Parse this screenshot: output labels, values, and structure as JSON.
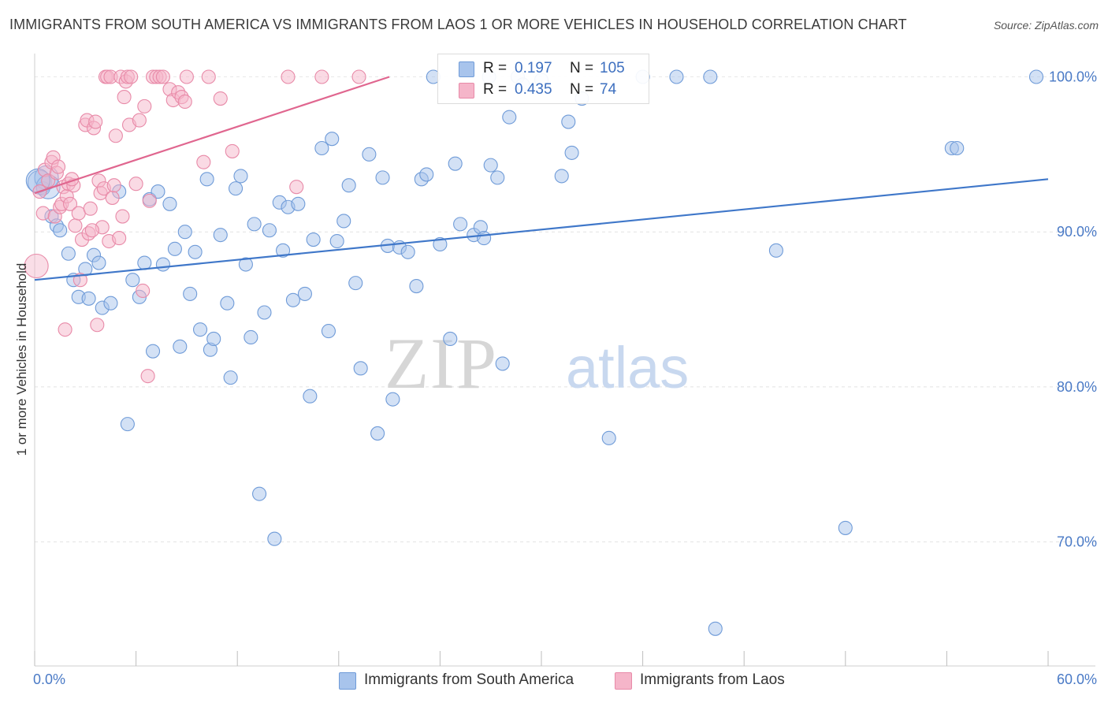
{
  "title": "IMMIGRANTS FROM SOUTH AMERICA VS IMMIGRANTS FROM LAOS 1 OR MORE VEHICLES IN HOUSEHOLD CORRELATION CHART",
  "source": "Source: ZipAtlas.com",
  "watermark": {
    "zip": "ZIP",
    "atlas": "atlas"
  },
  "x_min_label": "0.0%",
  "x_max_label": "60.0%",
  "legend": {
    "rows": [
      {
        "r_label": "R =",
        "r_value": "0.197",
        "n_label": "N =",
        "n_value": "105"
      },
      {
        "r_label": "R =",
        "r_value": "0.435",
        "n_label": "N =",
        "n_value": "74"
      }
    ]
  },
  "chart_data": {
    "type": "scatter",
    "title": "IMMIGRANTS FROM SOUTH AMERICA VS IMMIGRANTS FROM LAOS 1 OR MORE VEHICLES IN HOUSEHOLD CORRELATION CHART",
    "xlabel": "",
    "ylabel": "1 or more Vehicles in Household",
    "xlim": [
      0,
      60
    ],
    "ylim": [
      62,
      101.5
    ],
    "y_ticks": [
      70,
      80,
      90,
      100
    ],
    "y_tick_labels": [
      "70.0%",
      "80.0%",
      "90.0%",
      "100.0%"
    ],
    "grid": true,
    "legend_position": "top-center",
    "series": [
      {
        "name": "Immigrants from South America",
        "color": "#a8c4ec",
        "stroke": "#6f9bd8",
        "line_color": "#3f77c9",
        "trend": {
          "x0": 0,
          "y0": 86.9,
          "x1": 60,
          "y1": 93.4
        },
        "points": [
          [
            0.3,
            93.2
          ],
          [
            0.5,
            92.8
          ],
          [
            0.7,
            93.5
          ],
          [
            0.8,
            92.9
          ],
          [
            1.0,
            91.0
          ],
          [
            1.3,
            90.4
          ],
          [
            1.5,
            90.1
          ],
          [
            2.0,
            88.6
          ],
          [
            2.3,
            86.9
          ],
          [
            2.6,
            85.8
          ],
          [
            3.0,
            87.6
          ],
          [
            3.2,
            85.7
          ],
          [
            3.5,
            88.5
          ],
          [
            3.8,
            88.0
          ],
          [
            4.0,
            85.1
          ],
          [
            4.5,
            85.4
          ],
          [
            5.0,
            92.6
          ],
          [
            5.5,
            77.6
          ],
          [
            5.8,
            86.9
          ],
          [
            6.2,
            85.8
          ],
          [
            6.5,
            88.0
          ],
          [
            6.8,
            92.1
          ],
          [
            7.0,
            82.3
          ],
          [
            7.3,
            92.6
          ],
          [
            7.6,
            87.9
          ],
          [
            8.0,
            91.8
          ],
          [
            8.3,
            88.9
          ],
          [
            8.6,
            82.6
          ],
          [
            8.9,
            90.0
          ],
          [
            9.2,
            86.0
          ],
          [
            9.5,
            88.7
          ],
          [
            9.8,
            83.7
          ],
          [
            10.2,
            93.4
          ],
          [
            10.4,
            82.4
          ],
          [
            10.6,
            83.1
          ],
          [
            11.0,
            89.8
          ],
          [
            11.4,
            85.4
          ],
          [
            11.6,
            80.6
          ],
          [
            11.9,
            92.8
          ],
          [
            12.2,
            93.6
          ],
          [
            12.5,
            87.9
          ],
          [
            12.8,
            83.2
          ],
          [
            13.0,
            90.5
          ],
          [
            13.3,
            73.1
          ],
          [
            13.6,
            84.8
          ],
          [
            13.9,
            90.1
          ],
          [
            14.2,
            70.2
          ],
          [
            14.5,
            91.9
          ],
          [
            14.7,
            88.8
          ],
          [
            15.0,
            91.6
          ],
          [
            15.3,
            85.6
          ],
          [
            15.6,
            91.8
          ],
          [
            16.0,
            86.0
          ],
          [
            16.3,
            79.4
          ],
          [
            16.5,
            89.5
          ],
          [
            17.0,
            95.4
          ],
          [
            17.4,
            83.6
          ],
          [
            17.6,
            96.0
          ],
          [
            17.9,
            89.4
          ],
          [
            18.3,
            90.7
          ],
          [
            18.6,
            93.0
          ],
          [
            19.0,
            86.7
          ],
          [
            19.3,
            81.2
          ],
          [
            19.8,
            95.0
          ],
          [
            20.3,
            77.0
          ],
          [
            20.6,
            93.5
          ],
          [
            20.9,
            89.1
          ],
          [
            21.2,
            79.2
          ],
          [
            21.6,
            89.0
          ],
          [
            22.1,
            88.7
          ],
          [
            22.6,
            86.5
          ],
          [
            22.9,
            93.4
          ],
          [
            23.2,
            93.7
          ],
          [
            23.6,
            100.0
          ],
          [
            24.0,
            89.2
          ],
          [
            24.6,
            83.1
          ],
          [
            24.9,
            94.4
          ],
          [
            25.2,
            90.5
          ],
          [
            25.6,
            99.1
          ],
          [
            26.0,
            89.8
          ],
          [
            26.4,
            90.3
          ],
          [
            26.6,
            89.6
          ],
          [
            26.9,
            100.0
          ],
          [
            27.0,
            94.3
          ],
          [
            27.4,
            93.5
          ],
          [
            27.7,
            81.5
          ],
          [
            28.1,
            97.4
          ],
          [
            28.6,
            100.0
          ],
          [
            28.9,
            99.5
          ],
          [
            30.0,
            99.8
          ],
          [
            31.2,
            93.6
          ],
          [
            31.6,
            97.1
          ],
          [
            31.8,
            95.1
          ],
          [
            32.4,
            98.6
          ],
          [
            34.0,
            76.7
          ],
          [
            36.0,
            100.0
          ],
          [
            38.0,
            100.0
          ],
          [
            40.0,
            100.0
          ],
          [
            40.3,
            64.4
          ],
          [
            43.9,
            88.8
          ],
          [
            48.0,
            70.9
          ],
          [
            54.3,
            95.4
          ],
          [
            54.6,
            95.4
          ],
          [
            59.3,
            100.0
          ],
          [
            0.2,
            93.3
          ]
        ]
      },
      {
        "name": "Immigrants from Laos",
        "color": "#f5b5c9",
        "stroke": "#e88aa8",
        "line_color": "#e0668f",
        "trend": {
          "x0": 0,
          "y0": 92.5,
          "x1": 21,
          "y1": 100.0
        },
        "points": [
          [
            0.1,
            87.8
          ],
          [
            0.3,
            92.6
          ],
          [
            0.5,
            91.2
          ],
          [
            0.6,
            94.0
          ],
          [
            0.8,
            93.3
          ],
          [
            1.0,
            94.5
          ],
          [
            1.1,
            94.8
          ],
          [
            1.2,
            91.0
          ],
          [
            1.3,
            93.8
          ],
          [
            1.5,
            91.6
          ],
          [
            1.6,
            91.8
          ],
          [
            1.7,
            92.9
          ],
          [
            1.8,
            83.7
          ],
          [
            1.9,
            92.3
          ],
          [
            2.0,
            93.1
          ],
          [
            2.1,
            91.8
          ],
          [
            2.3,
            93.0
          ],
          [
            2.4,
            90.4
          ],
          [
            2.6,
            91.2
          ],
          [
            2.7,
            86.9
          ],
          [
            2.8,
            89.5
          ],
          [
            3.0,
            96.9
          ],
          [
            3.1,
            97.2
          ],
          [
            3.2,
            89.9
          ],
          [
            3.3,
            91.5
          ],
          [
            3.5,
            96.7
          ],
          [
            3.6,
            97.1
          ],
          [
            3.7,
            84.0
          ],
          [
            3.8,
            93.3
          ],
          [
            3.9,
            92.5
          ],
          [
            4.0,
            90.3
          ],
          [
            4.1,
            92.8
          ],
          [
            4.2,
            100.0
          ],
          [
            4.3,
            100.0
          ],
          [
            4.4,
            89.4
          ],
          [
            4.5,
            100.0
          ],
          [
            4.6,
            92.2
          ],
          [
            4.7,
            93.0
          ],
          [
            4.8,
            96.2
          ],
          [
            5.0,
            89.6
          ],
          [
            5.1,
            100.0
          ],
          [
            5.2,
            91.0
          ],
          [
            5.3,
            98.7
          ],
          [
            5.4,
            99.7
          ],
          [
            5.5,
            100.0
          ],
          [
            5.6,
            96.9
          ],
          [
            5.7,
            100.0
          ],
          [
            6.0,
            93.1
          ],
          [
            6.2,
            97.2
          ],
          [
            6.4,
            86.2
          ],
          [
            6.5,
            98.1
          ],
          [
            6.7,
            80.7
          ],
          [
            6.8,
            92.0
          ],
          [
            7.0,
            100.0
          ],
          [
            7.2,
            100.0
          ],
          [
            7.4,
            100.0
          ],
          [
            7.6,
            100.0
          ],
          [
            8.0,
            99.2
          ],
          [
            8.2,
            98.5
          ],
          [
            8.5,
            99.0
          ],
          [
            8.7,
            98.7
          ],
          [
            8.9,
            98.4
          ],
          [
            9.0,
            100.0
          ],
          [
            10.0,
            94.5
          ],
          [
            10.3,
            100.0
          ],
          [
            11.0,
            98.6
          ],
          [
            11.7,
            95.2
          ],
          [
            15.0,
            100.0
          ],
          [
            15.5,
            92.9
          ],
          [
            17.0,
            100.0
          ],
          [
            19.2,
            100.0
          ],
          [
            1.4,
            94.2
          ],
          [
            2.2,
            93.4
          ],
          [
            3.4,
            90.1
          ]
        ]
      }
    ]
  }
}
